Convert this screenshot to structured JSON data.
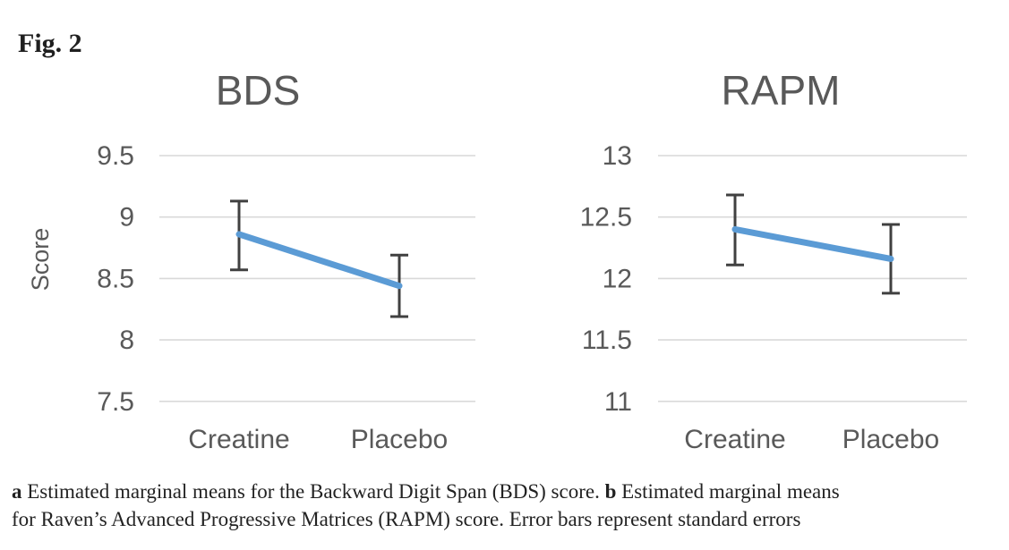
{
  "figure": {
    "label": "Fig. 2"
  },
  "style": {
    "line_color": "#5b9bd5",
    "error_bar_color": "#404040",
    "gridline_color": "#d9d9d9",
    "axis_text_color": "#595959",
    "caption_text_color": "#222222",
    "background_color": "#ffffff"
  },
  "chart_data": [
    {
      "type": "line",
      "panel": "a",
      "title": "BDS",
      "xlabel": "",
      "ylabel": "Score",
      "categories": [
        "Creatine",
        "Placebo"
      ],
      "yticks": [
        9.5,
        9,
        8.5,
        8,
        7.5
      ],
      "ylim": [
        7.2,
        9.75
      ],
      "grid": true,
      "legend": "none",
      "series": [
        {
          "name": "Estimated marginal mean",
          "values": [
            8.86,
            8.44
          ],
          "error_low": [
            8.57,
            8.19
          ],
          "error_high": [
            9.13,
            8.69
          ]
        }
      ]
    },
    {
      "type": "line",
      "panel": "b",
      "title": "RAPM",
      "xlabel": "",
      "ylabel": "",
      "categories": [
        "Creatine",
        "Placebo"
      ],
      "yticks": [
        13,
        12.5,
        12,
        11.5,
        11
      ],
      "ylim": [
        10.7,
        13.25
      ],
      "grid": true,
      "legend": "none",
      "series": [
        {
          "name": "Estimated marginal mean",
          "values": [
            12.4,
            12.16
          ],
          "error_low": [
            12.11,
            11.88
          ],
          "error_high": [
            12.68,
            12.44
          ]
        }
      ]
    }
  ],
  "caption": {
    "panel_a_label": "a",
    "panel_a_text": " Estimated marginal means for the Backward Digit Span (BDS) score. ",
    "panel_b_label": "b",
    "panel_b_text": " Estimated marginal means",
    "line2": "for Raven’s Advanced Progressive Matrices (RAPM) score. Error bars represent standard errors"
  }
}
